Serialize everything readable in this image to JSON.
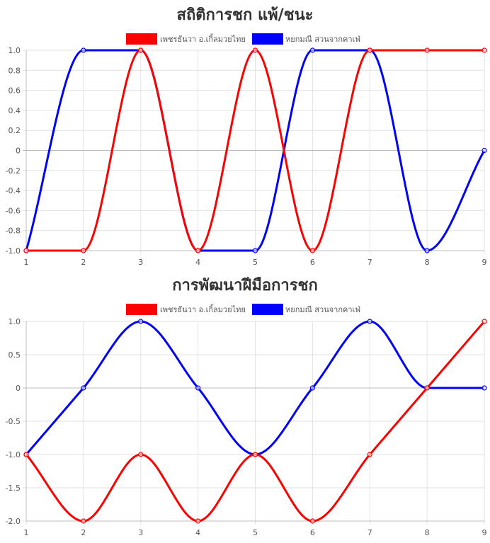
{
  "chart_data": [
    {
      "type": "line",
      "title": "สถิติการชก แพ้/ชนะ",
      "x": [
        1,
        2,
        3,
        4,
        5,
        6,
        7,
        8,
        9
      ],
      "ylim": [
        -1.0,
        1.0
      ],
      "yticks": [
        1.0,
        0.8,
        0.6,
        0.4,
        0.2,
        0,
        -0.2,
        -0.4,
        -0.6,
        -0.8,
        -1.0
      ],
      "ytick_labels": [
        "1.0",
        "0.8",
        "0.6",
        "0.4",
        "0.2",
        "0",
        "-0.2",
        "-0.4",
        "-0.6",
        "-0.8",
        "-1.0"
      ],
      "grid": true,
      "legend_position": "top",
      "series": [
        {
          "name": "เพชรธันวา อ.เกิ้ลมวยไทย",
          "color": "#ff0000",
          "values": [
            -1,
            -1,
            1,
            -1,
            1,
            -1,
            1,
            1,
            1
          ]
        },
        {
          "name": "หยกมณี สวนจากคาเฟ่",
          "color": "#0000ff",
          "values": [
            -1,
            1,
            1,
            -1,
            -1,
            1,
            1,
            -1,
            0
          ]
        }
      ]
    },
    {
      "type": "line",
      "title": "การพัฒนาฝีมือการชก",
      "x": [
        1,
        2,
        3,
        4,
        5,
        6,
        7,
        8,
        9
      ],
      "ylim": [
        -2.0,
        1.0
      ],
      "yticks": [
        1.0,
        0.5,
        0,
        -0.5,
        -1.0,
        -1.5,
        -2.0
      ],
      "ytick_labels": [
        "1.0",
        "0.5",
        "0",
        "-0.5",
        "-1.0",
        "-1.5",
        "-2.0"
      ],
      "grid": true,
      "legend_position": "top",
      "series": [
        {
          "name": "เพชรธันวา อ.เกิ้ลมวยไทย",
          "color": "#ff0000",
          "values": [
            -1,
            -2,
            -1,
            -2,
            -1,
            -2,
            -1,
            0,
            1
          ]
        },
        {
          "name": "หยกมณี สวนจากคาเฟ่",
          "color": "#0000ff",
          "values": [
            -1,
            0,
            1,
            0,
            -1,
            0,
            1,
            0,
            0
          ]
        }
      ]
    }
  ]
}
